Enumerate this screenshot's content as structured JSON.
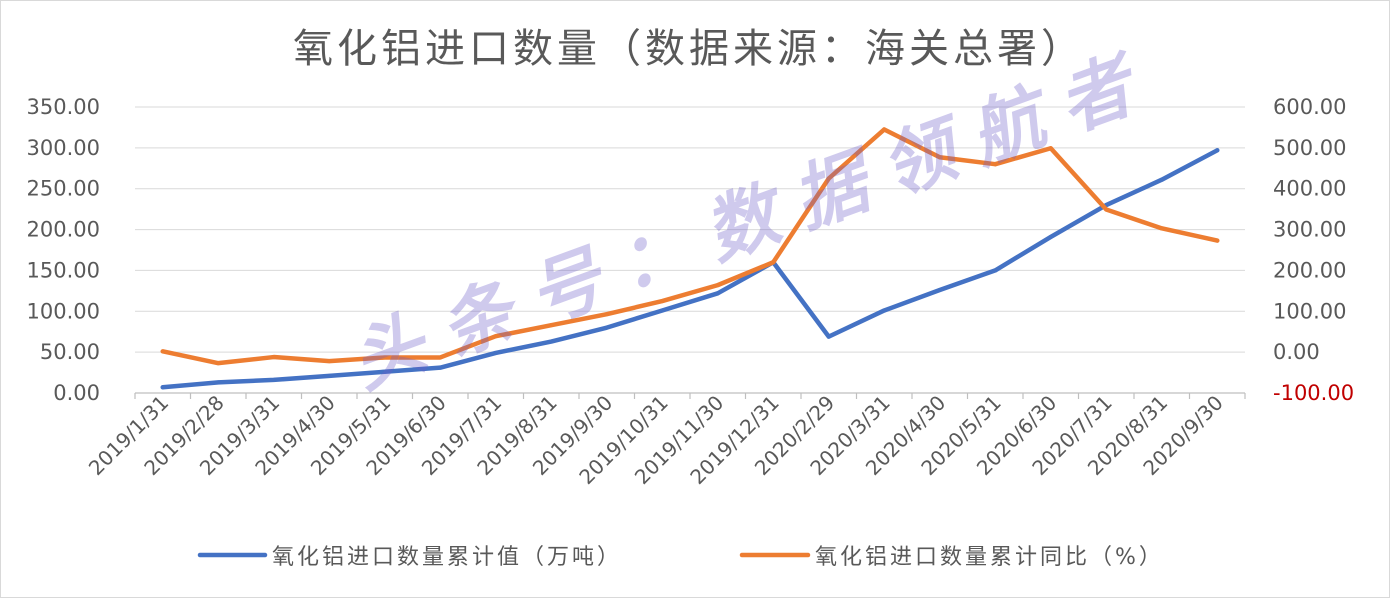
{
  "chart_data": {
    "type": "line",
    "title": "氧化铝进口数量（数据来源：海关总署）",
    "categories": [
      "2019/1/31",
      "2019/2/28",
      "2019/3/31",
      "2019/4/30",
      "2019/5/31",
      "2019/6/30",
      "2019/7/31",
      "2019/8/31",
      "2019/9/30",
      "2019/10/31",
      "2019/11/30",
      "2019/12/31",
      "2020/2/29",
      "2020/3/31",
      "2020/4/30",
      "2020/5/31",
      "2020/6/30",
      "2020/7/31",
      "2020/8/31",
      "2020/9/30"
    ],
    "series": [
      {
        "name": "氧化铝进口数量累计值（万吨）",
        "axis": "left",
        "color": "#4472C4",
        "values": [
          7,
          13,
          16,
          21,
          26,
          31,
          49,
          63,
          80,
          101,
          122,
          160,
          69,
          101,
          126,
          150,
          191,
          230,
          261,
          297
        ]
      },
      {
        "name": "氧化铝进口数量累计同比（%）",
        "axis": "right",
        "color": "#ED7D31",
        "values": [
          2,
          -27,
          -12,
          -22,
          -13,
          -13,
          39,
          66,
          93,
          125,
          164,
          220,
          425,
          545,
          477,
          460,
          499,
          349,
          303,
          273
        ]
      }
    ],
    "y_left": {
      "ylim": [
        0,
        350
      ],
      "tick_labels": [
        "0.00",
        "50.00",
        "100.00",
        "150.00",
        "200.00",
        "250.00",
        "300.00",
        "350.00"
      ]
    },
    "y_right": {
      "ylim": [
        -100,
        600
      ],
      "tick_labels": [
        "-100.00",
        "0.00",
        "100.00",
        "200.00",
        "300.00",
        "400.00",
        "500.00",
        "600.00"
      ],
      "negative_label_color": "#C00000"
    },
    "grid": true,
    "legend": "bottom"
  },
  "watermark": "头条号：数据领航者"
}
